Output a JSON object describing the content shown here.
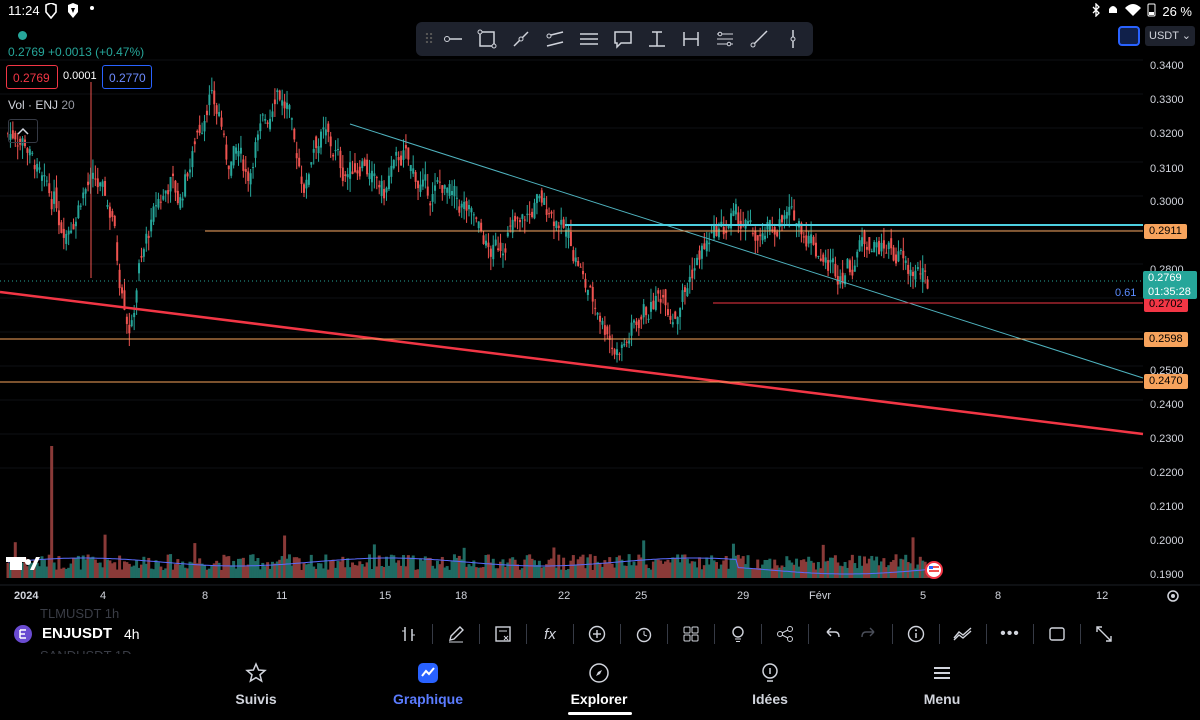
{
  "status_bar": {
    "time": "11:24",
    "battery": "26 %",
    "icons": [
      "brave-icon",
      "brave-shield-icon",
      "notification-dot-icon",
      "bluetooth-icon",
      "silent-icon",
      "wifi-icon",
      "battery-icon"
    ]
  },
  "header": {
    "price_line": "0.2769",
    "change": "+0.0013 (+0.47%)",
    "bid": "0.2769",
    "spread": "0.0001",
    "ask": "0.2770",
    "volume_label": "Vol · ENJ",
    "volume_length": "20",
    "currency": "USDT"
  },
  "drawing_tools": [
    "horizontal-ray-icon",
    "rectangle-icon",
    "trend-line-icon",
    "parallel-channel-icon",
    "horizontal-lines-icon",
    "callout-icon",
    "text-anchor-icon",
    "measure-icon",
    "path-icon",
    "ray-icon",
    "vertical-line-icon"
  ],
  "price_axis": [
    "0.3400",
    "0.3300",
    "0.3200",
    "0.3100",
    "0.3000",
    "0.2800",
    "0.2500",
    "0.2400",
    "0.2300",
    "0.2200",
    "0.2100",
    "0.2000",
    "0.1900"
  ],
  "price_tags": {
    "level_1": "0.2911",
    "current_price": "0.2769",
    "countdown": "01:35:28",
    "level_2": "0.2702",
    "level_3": "0.2598",
    "level_4": "0.2470",
    "fib_label": "0.61"
  },
  "time_axis": [
    "2024",
    "4",
    "8",
    "11",
    "15",
    "18",
    "22",
    "25",
    "29",
    "Févr",
    "5",
    "8",
    "12"
  ],
  "symbol_bar": {
    "prev_symbol": "TLMUSDT  1h",
    "symbol": "ENJUSDT",
    "interval": "4h",
    "next_symbol": "SANDUSDT  1D"
  },
  "bottom_nav": {
    "watchlist": "Suivis",
    "chart": "Graphique",
    "explore": "Explorer",
    "ideas": "Idées",
    "menu": "Menu"
  },
  "colors": {
    "up": "#26a69a",
    "down": "#ef5350",
    "level_line": "#f7a35c",
    "cyan_line": "#4dd0e1",
    "trend_red": "#f23645",
    "accent": "#2962ff"
  },
  "chart_data": {
    "type": "candlestick",
    "symbol": "ENJUSDT",
    "interval": "4h",
    "currency": "USDT",
    "ylim": [
      0.188,
      0.345
    ],
    "last_price": 0.2769,
    "horizontal_levels": [
      0.2911,
      0.2702,
      0.2598,
      0.247
    ],
    "dates_shown": [
      "2024",
      "4",
      "8",
      "11",
      "15",
      "18",
      "22",
      "25",
      "29",
      "Févr",
      "5",
      "8",
      "12"
    ],
    "closes_approx": [
      0.32,
      0.318,
      0.312,
      0.305,
      0.3,
      0.292,
      0.294,
      0.302,
      0.306,
      0.303,
      0.296,
      0.275,
      0.262,
      0.282,
      0.292,
      0.301,
      0.305,
      0.3,
      0.31,
      0.322,
      0.33,
      0.326,
      0.312,
      0.315,
      0.308,
      0.318,
      0.325,
      0.333,
      0.328,
      0.315,
      0.304,
      0.318,
      0.32,
      0.314,
      0.308,
      0.31,
      0.312,
      0.306,
      0.303,
      0.31,
      0.313,
      0.309,
      0.304,
      0.301,
      0.305,
      0.302,
      0.298,
      0.296,
      0.291,
      0.285,
      0.287,
      0.291,
      0.293,
      0.296,
      0.3,
      0.298,
      0.294,
      0.29,
      0.282,
      0.274,
      0.268,
      0.262,
      0.255,
      0.258,
      0.264,
      0.268,
      0.27,
      0.272,
      0.266,
      0.273,
      0.28,
      0.286,
      0.29,
      0.292,
      0.295,
      0.293,
      0.291,
      0.288,
      0.292,
      0.294,
      0.296,
      0.293,
      0.289,
      0.284,
      0.281,
      0.278,
      0.281,
      0.286,
      0.288,
      0.287,
      0.286,
      0.283,
      0.28,
      0.279,
      0.276,
      0.2769
    ]
  }
}
